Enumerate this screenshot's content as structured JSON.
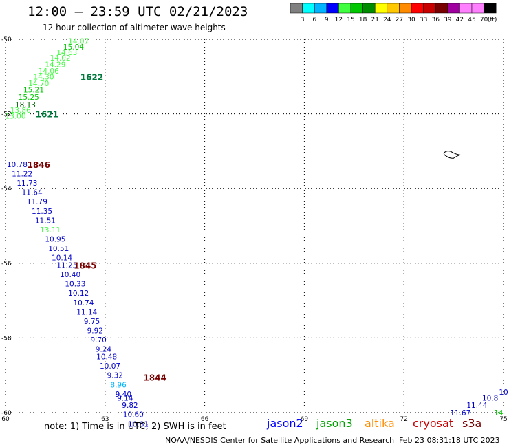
{
  "title": "12:00 – 23:59 UTC 02/21/2023",
  "subtitle": "12 hour collection of altimeter wave heights",
  "colorbar": {
    "labels": [
      "3",
      "6",
      "9",
      "12",
      "15",
      "18",
      "21",
      "24",
      "27",
      "30",
      "33",
      "36",
      "39",
      "42",
      "45",
      "70"
    ],
    "unit": "(ft)",
    "colors": [
      "#808080",
      "#00ffff",
      "#00b4ff",
      "#0000ff",
      "#40ff40",
      "#00c800",
      "#008c00",
      "#ffff00",
      "#ffc800",
      "#ff8c00",
      "#ff0000",
      "#c80000",
      "#780000",
      "#a000a0",
      "#ff80ff",
      "#ff80ff",
      "#000000"
    ]
  },
  "map": {
    "lon_range": [
      60,
      75
    ],
    "lat_range": [
      -60,
      -50
    ],
    "x_ticks": [
      "60",
      "63",
      "66",
      "69",
      "72",
      "75"
    ],
    "y_ticks": [
      "-50",
      "-52",
      "-54",
      "-56",
      "-58",
      "-60"
    ],
    "grid": "dotted"
  },
  "passes": [
    {
      "time": "1622",
      "color": "#00783c",
      "lat": -51.0,
      "lon": 62.6
    },
    {
      "time": "1621",
      "color": "#00783c",
      "lat": -52.0,
      "lon": 61.25
    },
    {
      "time": "1846",
      "color": "#780000",
      "lat": -53.35,
      "lon": 61.0
    },
    {
      "time": "1845",
      "color": "#780000",
      "lat": -56.05,
      "lon": 62.4
    },
    {
      "time": "1844",
      "color": "#780000",
      "lat": -59.05,
      "lon": 64.5
    }
  ],
  "swh": [
    {
      "v": "14.07",
      "c": "#40ff40",
      "lat": -50.05,
      "lon": 62.2
    },
    {
      "v": "15.04",
      "c": "#00c800",
      "lat": -50.2,
      "lon": 62.05
    },
    {
      "v": "14.63",
      "c": "#40ff40",
      "lat": -50.35,
      "lon": 61.85
    },
    {
      "v": "14.02",
      "c": "#40ff40",
      "lat": -50.5,
      "lon": 61.65
    },
    {
      "v": "14.29",
      "c": "#40ff40",
      "lat": -50.67,
      "lon": 61.5
    },
    {
      "v": "14.06",
      "c": "#40ff40",
      "lat": -50.85,
      "lon": 61.3
    },
    {
      "v": "14.30",
      "c": "#40ff40",
      "lat": -51.0,
      "lon": 61.15
    },
    {
      "v": "14.70",
      "c": "#40ff40",
      "lat": -51.18,
      "lon": 61.0
    },
    {
      "v": "15.21",
      "c": "#00c800",
      "lat": -51.35,
      "lon": 60.85
    },
    {
      "v": "15.25",
      "c": "#00c800",
      "lat": -51.55,
      "lon": 60.7
    },
    {
      "v": "18.13",
      "c": "#006400",
      "lat": -51.75,
      "lon": 60.6
    },
    {
      "v": "13.86",
      "c": "#40ff40",
      "lat": -51.9,
      "lon": 60.45
    },
    {
      "v": "13.00",
      "c": "#40ff40",
      "lat": -52.05,
      "lon": 60.3
    },
    {
      "v": "10.78",
      "c": "#0000c8",
      "lat": -53.35,
      "lon": 60.35
    },
    {
      "v": "11.22",
      "c": "#0000c8",
      "lat": -53.6,
      "lon": 60.5
    },
    {
      "v": "11.73",
      "c": "#0000c8",
      "lat": -53.85,
      "lon": 60.65
    },
    {
      "v": "11.64",
      "c": "#0000c8",
      "lat": -54.1,
      "lon": 60.8
    },
    {
      "v": "11.79",
      "c": "#0000c8",
      "lat": -54.35,
      "lon": 60.95
    },
    {
      "v": "11.35",
      "c": "#0000c8",
      "lat": -54.6,
      "lon": 61.1
    },
    {
      "v": "11.51",
      "c": "#0000c8",
      "lat": -54.85,
      "lon": 61.2
    },
    {
      "v": "13.11",
      "c": "#40ff40",
      "lat": -55.1,
      "lon": 61.35
    },
    {
      "v": "10.95",
      "c": "#0000c8",
      "lat": -55.35,
      "lon": 61.5
    },
    {
      "v": "10.51",
      "c": "#0000c8",
      "lat": -55.6,
      "lon": 61.6
    },
    {
      "v": "10.14",
      "c": "#0000c8",
      "lat": -55.85,
      "lon": 61.7
    },
    {
      "v": "11.23",
      "c": "#0000c8",
      "lat": -56.05,
      "lon": 61.85
    },
    {
      "v": "10.40",
      "c": "#0000c8",
      "lat": -56.3,
      "lon": 61.95
    },
    {
      "v": "10.33",
      "c": "#0000c8",
      "lat": -56.55,
      "lon": 62.1
    },
    {
      "v": "10.12",
      "c": "#0000c8",
      "lat": -56.8,
      "lon": 62.2
    },
    {
      "v": "10.74",
      "c": "#0000c8",
      "lat": -57.05,
      "lon": 62.35
    },
    {
      "v": "11.14",
      "c": "#0000c8",
      "lat": -57.3,
      "lon": 62.45
    },
    {
      "v": "9.75",
      "c": "#0000c8",
      "lat": -57.55,
      "lon": 62.6
    },
    {
      "v": "9.92",
      "c": "#0000c8",
      "lat": -57.8,
      "lon": 62.7
    },
    {
      "v": "9.70",
      "c": "#0000c8",
      "lat": -58.05,
      "lon": 62.8
    },
    {
      "v": "9.24",
      "c": "#0000c8",
      "lat": -58.3,
      "lon": 62.95
    },
    {
      "v": "10.48",
      "c": "#0000c8",
      "lat": -58.5,
      "lon": 63.05
    },
    {
      "v": "10.07",
      "c": "#0000c8",
      "lat": -58.75,
      "lon": 63.15
    },
    {
      "v": "9.32",
      "c": "#0000c8",
      "lat": -59.0,
      "lon": 63.3
    },
    {
      "v": "8.96",
      "c": "#00b4ff",
      "lat": -59.25,
      "lon": 63.4
    },
    {
      "v": "9.40",
      "c": "#0000c8",
      "lat": -59.5,
      "lon": 63.55
    },
    {
      "v": "9.14",
      "c": "#0000c8",
      "lat": -59.6,
      "lon": 63.6
    },
    {
      "v": "9.82",
      "c": "#0000c8",
      "lat": -59.8,
      "lon": 63.75
    },
    {
      "v": "10.60",
      "c": "#0000c8",
      "lat": -60.05,
      "lon": 63.85
    },
    {
      "v": "10.81",
      "c": "#0000c8",
      "lat": -60.3,
      "lon": 64.0
    },
    {
      "v": "11.67",
      "c": "#0000c8",
      "lat": -60.0,
      "lon": 73.7
    },
    {
      "v": "11.44",
      "c": "#0000c8",
      "lat": -59.8,
      "lon": 74.2
    },
    {
      "v": "10.8",
      "c": "#0000c8",
      "lat": -59.6,
      "lon": 74.6
    },
    {
      "v": "14",
      "c": "#00c800",
      "lat": -60.0,
      "lon": 74.85
    },
    {
      "v": "10",
      "c": "#0000c8",
      "lat": -59.45,
      "lon": 75.0
    }
  ],
  "note": "note: 1) Time is in UTC; 2) SWH is in feet",
  "missions": [
    {
      "name": "jason2",
      "color": "#0000ff"
    },
    {
      "name": "jason3",
      "color": "#00a000"
    },
    {
      "name": "altika",
      "color": "#ff8c00"
    },
    {
      "name": "cryosat",
      "color": "#c80000"
    },
    {
      "name": "s3a",
      "color": "#780000"
    }
  ],
  "footer": {
    "credit": "NOAA/NESDIS Center for Satellite Applications and Research",
    "timestamp": "Feb 23 08:31:18 UTC 2023"
  }
}
